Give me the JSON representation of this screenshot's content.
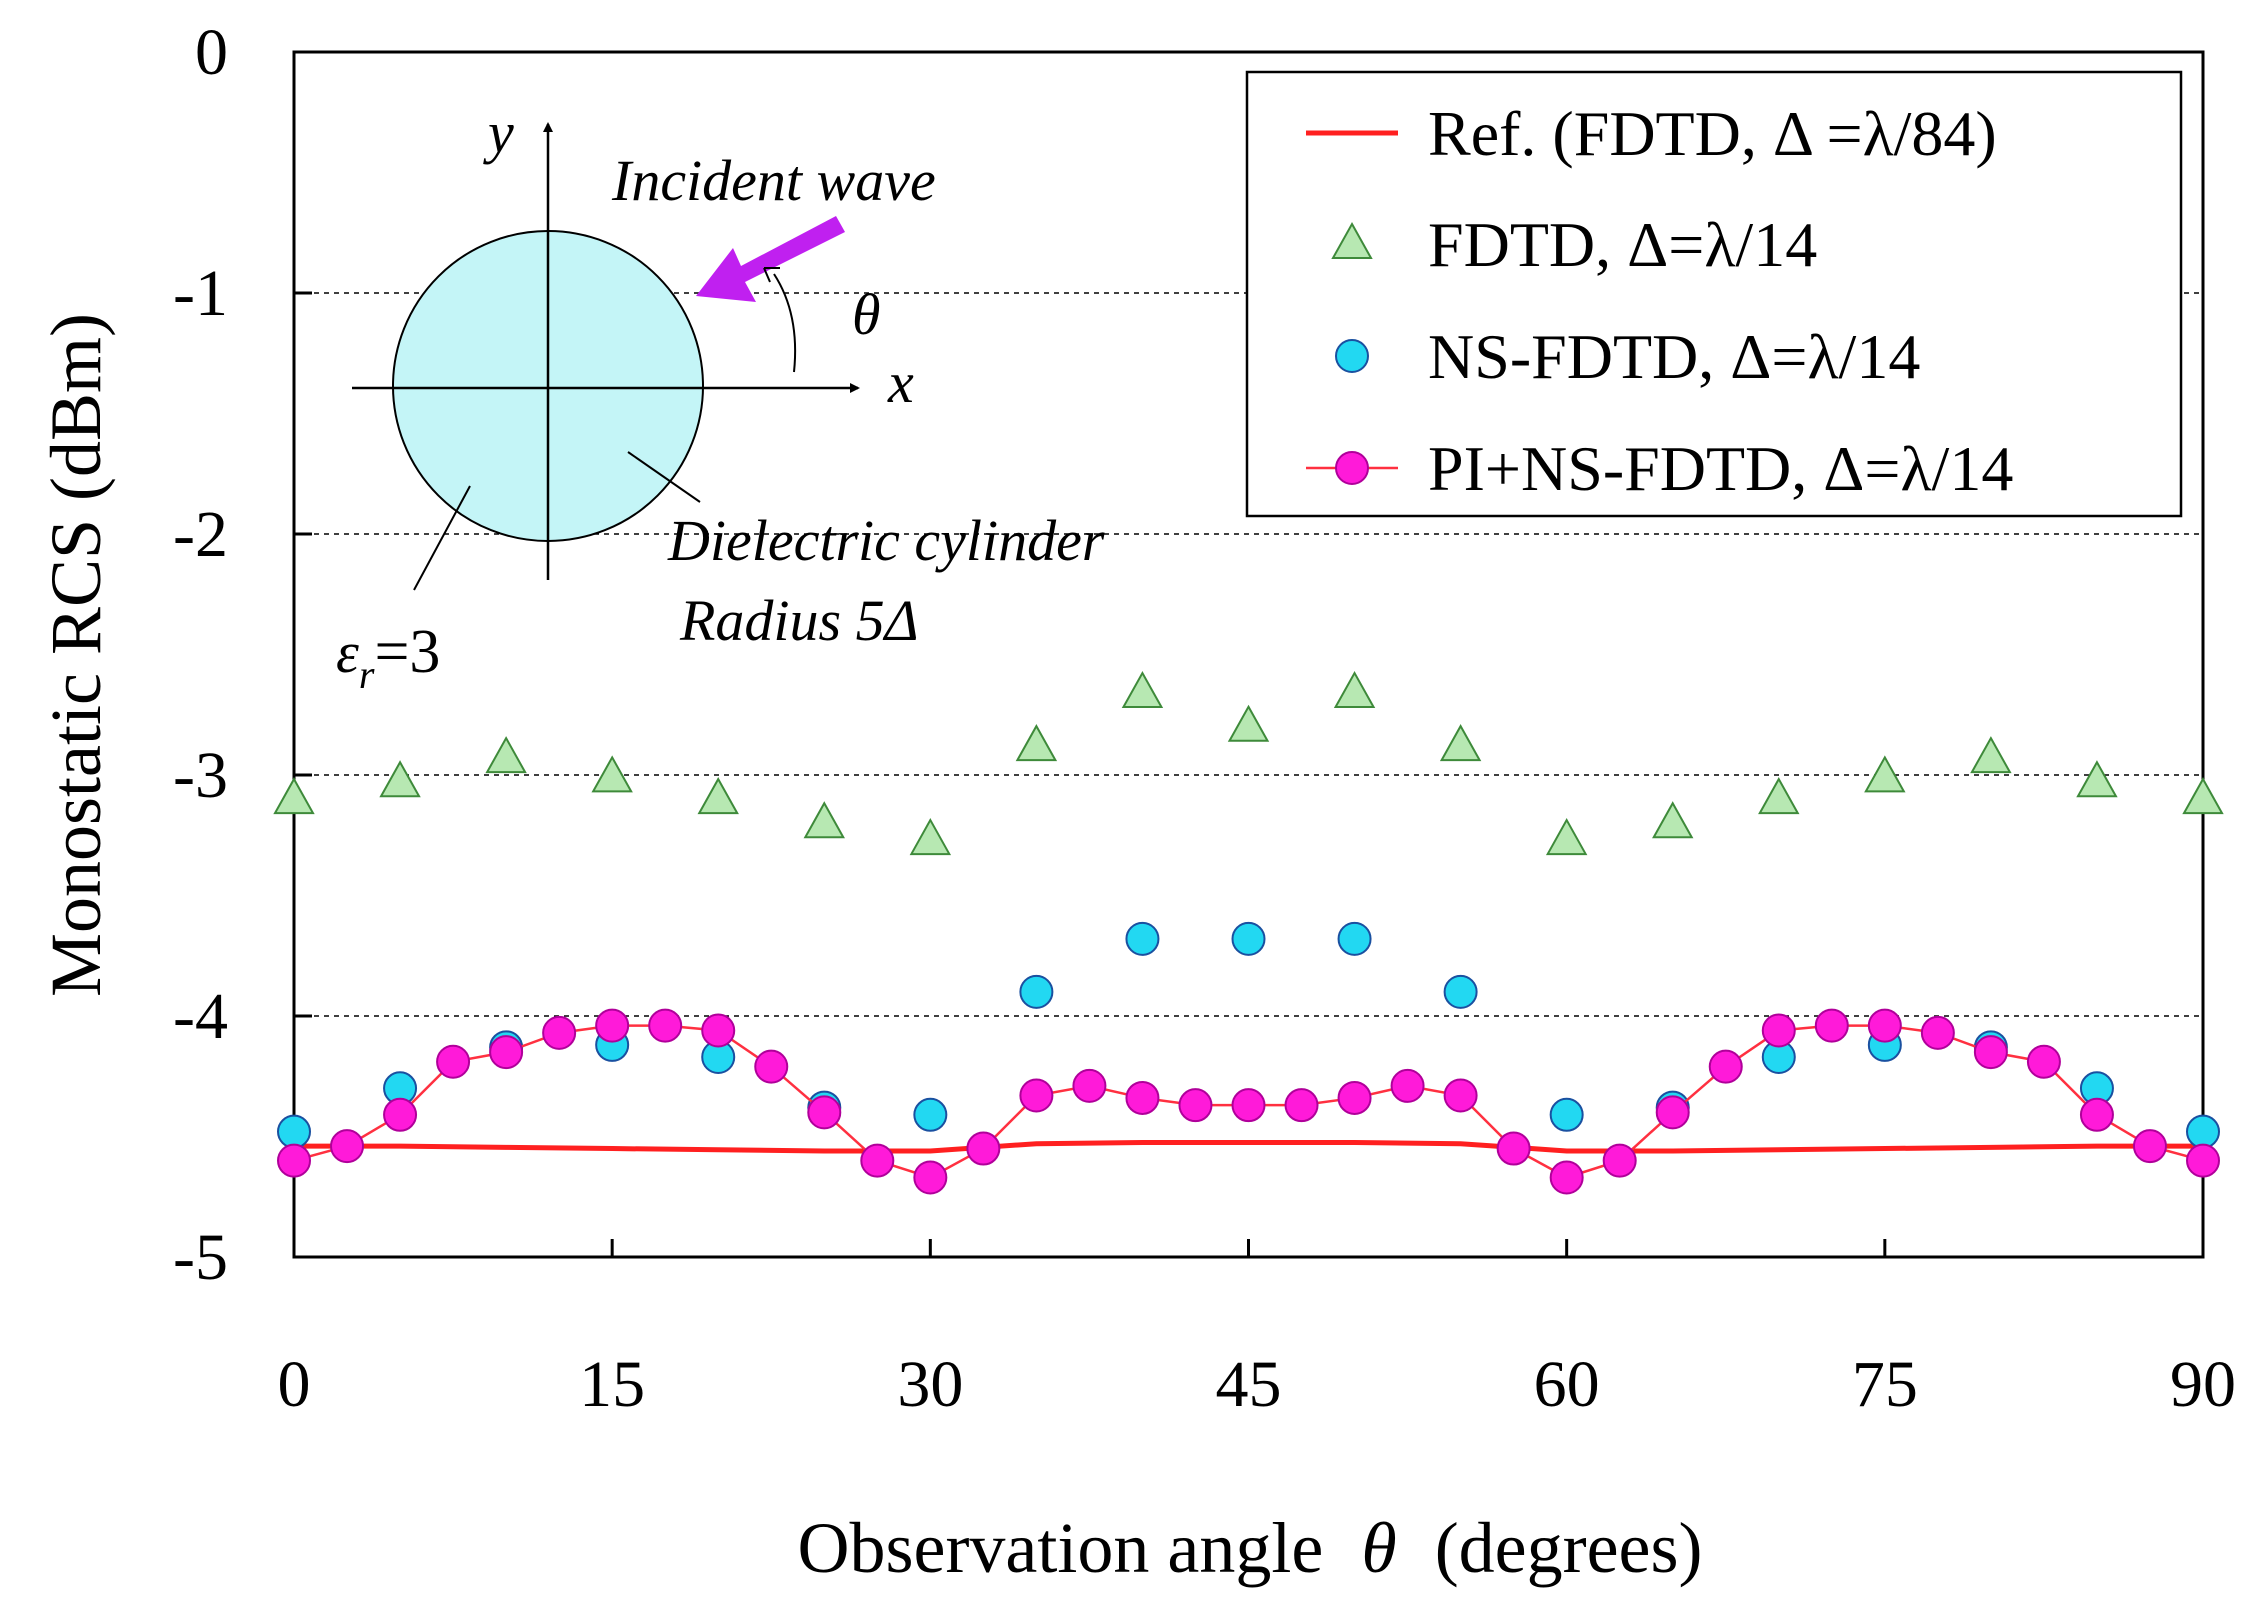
{
  "chart_data": {
    "type": "scatter",
    "xlabel": "Observation angle",
    "xlabel_symbol": "θ",
    "xlabel_unit": "(degrees)",
    "ylabel": "Monostatic RCS (dBm)",
    "xlim": [
      0,
      90
    ],
    "ylim": [
      -5,
      0
    ],
    "xticks": [
      0,
      15,
      30,
      45,
      60,
      75,
      90
    ],
    "yticks": [
      0,
      -1,
      -2,
      -3,
      -4,
      -5
    ],
    "grid": "horizontal-dashed",
    "legend_position": "top-right",
    "series": [
      {
        "name": "Ref. (FDTD, Δ =λ/84)",
        "style": "line",
        "color": "#ff2020",
        "x": [
          0,
          5,
          10,
          15,
          20,
          25,
          30,
          35,
          40,
          45,
          50,
          55,
          60,
          65,
          70,
          75,
          80,
          85,
          90
        ],
        "y": [
          -4.54,
          -4.54,
          -4.545,
          -4.55,
          -4.555,
          -4.56,
          -4.56,
          -4.53,
          -4.525,
          -4.525,
          -4.525,
          -4.53,
          -4.56,
          -4.56,
          -4.555,
          -4.55,
          -4.545,
          -4.54,
          -4.54
        ]
      },
      {
        "name": "FDTD, Δ=λ/14",
        "style": "triangle",
        "color": "#b7e8b2",
        "x": [
          0,
          5,
          10,
          15,
          20,
          25,
          30,
          35,
          40,
          45,
          50,
          55,
          60,
          65,
          70,
          75,
          80,
          85,
          90
        ],
        "y": [
          -3.1,
          -3.03,
          -2.93,
          -3.01,
          -3.1,
          -3.2,
          -3.27,
          -2.88,
          -2.66,
          -2.8,
          -2.66,
          -2.88,
          -3.27,
          -3.2,
          -3.1,
          -3.01,
          -2.93,
          -3.03,
          -3.1
        ]
      },
      {
        "name": "NS-FDTD, Δ=λ/14",
        "style": "circle",
        "color": "#22d8f2",
        "x": [
          0,
          5,
          10,
          15,
          20,
          25,
          30,
          35,
          40,
          45,
          50,
          55,
          60,
          65,
          70,
          75,
          80,
          85,
          90
        ],
        "y": [
          -4.48,
          -4.3,
          -4.13,
          -4.12,
          -4.17,
          -4.38,
          -4.41,
          -3.9,
          -3.68,
          -3.68,
          -3.68,
          -3.9,
          -4.41,
          -4.38,
          -4.17,
          -4.12,
          -4.13,
          -4.3,
          -4.48
        ]
      },
      {
        "name": "PI+NS-FDTD, Δ=λ/14",
        "style": "circle-line",
        "color": "#ff1ad9",
        "x": [
          0,
          2.5,
          5,
          7.5,
          10,
          12.5,
          15,
          17.5,
          20,
          22.5,
          25,
          27.5,
          30,
          32.5,
          35,
          37.5,
          40,
          42.5,
          45,
          47.5,
          50,
          52.5,
          55,
          57.5,
          60,
          62.5,
          65,
          67.5,
          70,
          72.5,
          75,
          77.5,
          80,
          82.5,
          85,
          87.5,
          90
        ],
        "y": [
          -4.6,
          -4.54,
          -4.41,
          -4.19,
          -4.15,
          -4.07,
          -4.04,
          -4.04,
          -4.06,
          -4.21,
          -4.4,
          -4.6,
          -4.67,
          -4.55,
          -4.33,
          -4.29,
          -4.34,
          -4.37,
          -4.37,
          -4.37,
          -4.34,
          -4.29,
          -4.33,
          -4.55,
          -4.67,
          -4.6,
          -4.4,
          -4.21,
          -4.06,
          -4.04,
          -4.04,
          -4.07,
          -4.15,
          -4.19,
          -4.41,
          -4.54,
          -4.6
        ]
      }
    ],
    "inset": {
      "axis_x_label": "x",
      "axis_y_label": "y",
      "incident_label": "Incident wave",
      "theta_label": "θ",
      "cylinder_label": "Dielectric  cylinder",
      "radius_label": "Radius  5Δ",
      "epsilon_label": "ε",
      "epsilon_sub": "r",
      "epsilon_value": "=3"
    }
  }
}
